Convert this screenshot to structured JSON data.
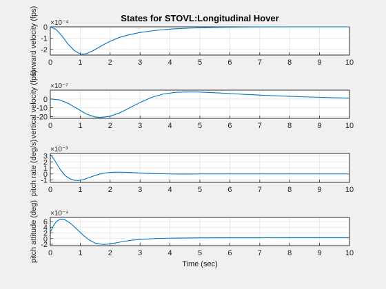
{
  "chart_data": {
    "type": "line",
    "title": "States for STOVL:Longitudinal Hover",
    "xlabel": "Time (sec)",
    "xlim": [
      0,
      10
    ],
    "xticks": [
      "0",
      "1",
      "2",
      "3",
      "4",
      "5",
      "6",
      "7",
      "8",
      "9",
      "10"
    ],
    "grid": true,
    "line_color": "#0072bd",
    "subplots": [
      {
        "ylabel": "forward velocity (fps)",
        "exponent": "×10⁻⁴",
        "ylim": [
          -2.5,
          0
        ],
        "yticks": [
          0,
          -1,
          -2
        ],
        "ytick_labels": [
          "0",
          "-1",
          "-2"
        ],
        "x": [
          0,
          0.2,
          0.4,
          0.6,
          0.8,
          1.0,
          1.1,
          1.2,
          1.4,
          1.6,
          1.8,
          2.0,
          2.3,
          2.6,
          3.0,
          3.5,
          4.0,
          4.5,
          5.0,
          5.5,
          6.0,
          6.5,
          7.0,
          8.0,
          9.0,
          10.0
        ],
        "y": [
          0,
          -0.25,
          -0.85,
          -1.55,
          -2.1,
          -2.4,
          -2.42,
          -2.38,
          -2.15,
          -1.85,
          -1.55,
          -1.28,
          -0.95,
          -0.72,
          -0.5,
          -0.32,
          -0.2,
          -0.13,
          -0.08,
          -0.05,
          -0.03,
          -0.015,
          -0.005,
          0,
          0,
          0
        ]
      },
      {
        "ylabel": "vertical velocity (fps)",
        "exponent": "×10⁻⁷",
        "ylim": [
          -22,
          10
        ],
        "yticks": [
          0,
          -10,
          -20
        ],
        "ytick_labels": [
          "0",
          "-10",
          "-20"
        ],
        "x": [
          0,
          0.3,
          0.6,
          0.9,
          1.2,
          1.5,
          1.7,
          2.0,
          2.3,
          2.6,
          3.0,
          3.4,
          3.8,
          4.2,
          4.6,
          5.0,
          5.5,
          6.0,
          6.5,
          7.0,
          7.5,
          8.0,
          8.5,
          9.0,
          9.5,
          10.0
        ],
        "y": [
          0,
          -1,
          -5,
          -11,
          -17,
          -20.5,
          -21,
          -19.5,
          -16,
          -11,
          -4,
          2,
          5.8,
          7.5,
          8,
          7.8,
          7,
          6.2,
          5.2,
          4.4,
          3.6,
          3,
          2.4,
          1.9,
          1.4,
          1
        ]
      },
      {
        "ylabel": "pitch rate (deg/s)",
        "exponent": "×10⁻³",
        "ylim": [
          -1.4,
          3.4
        ],
        "yticks": [
          3,
          2,
          1,
          0,
          -1
        ],
        "ytick_labels": [
          "3",
          "2",
          "1",
          "0",
          "-1"
        ],
        "x": [
          0,
          0.1,
          0.2,
          0.35,
          0.5,
          0.65,
          0.8,
          0.95,
          1.1,
          1.3,
          1.5,
          1.7,
          1.9,
          2.1,
          2.3,
          2.6,
          3.0,
          3.5,
          4.0,
          4.5,
          5.0,
          6.0,
          7.0,
          8.0,
          10.0
        ],
        "y": [
          3.2,
          2.6,
          1.8,
          0.6,
          -0.3,
          -0.8,
          -1.05,
          -1.1,
          -0.95,
          -0.6,
          -0.25,
          0.05,
          0.2,
          0.28,
          0.3,
          0.25,
          0.15,
          0.05,
          0,
          -0.02,
          0,
          0,
          0,
          0,
          0
        ]
      },
      {
        "ylabel": "pitch attitude (deg)",
        "exponent": "×10⁻⁴",
        "ylim": [
          -2.5,
          7.5
        ],
        "yticks": [
          6,
          4,
          2,
          0,
          -2
        ],
        "ytick_labels": [
          "6",
          "4",
          "2",
          "0",
          "-2"
        ],
        "x": [
          0,
          0.1,
          0.2,
          0.3,
          0.4,
          0.5,
          0.7,
          0.9,
          1.1,
          1.3,
          1.5,
          1.7,
          1.8,
          1.9,
          2.1,
          2.4,
          2.7,
          3.0,
          3.5,
          4.0,
          5.0,
          6.0,
          7.0,
          8.0,
          9.0,
          10.0
        ],
        "y": [
          2.2,
          4.5,
          6,
          6.7,
          6.9,
          6.6,
          5.2,
          3.2,
          1.2,
          -0.5,
          -1.6,
          -2,
          -2.05,
          -2,
          -1.7,
          -1.1,
          -0.6,
          -0.3,
          0,
          0.15,
          0.25,
          0.3,
          0.3,
          0.32,
          0.32,
          0.32
        ]
      }
    ]
  }
}
